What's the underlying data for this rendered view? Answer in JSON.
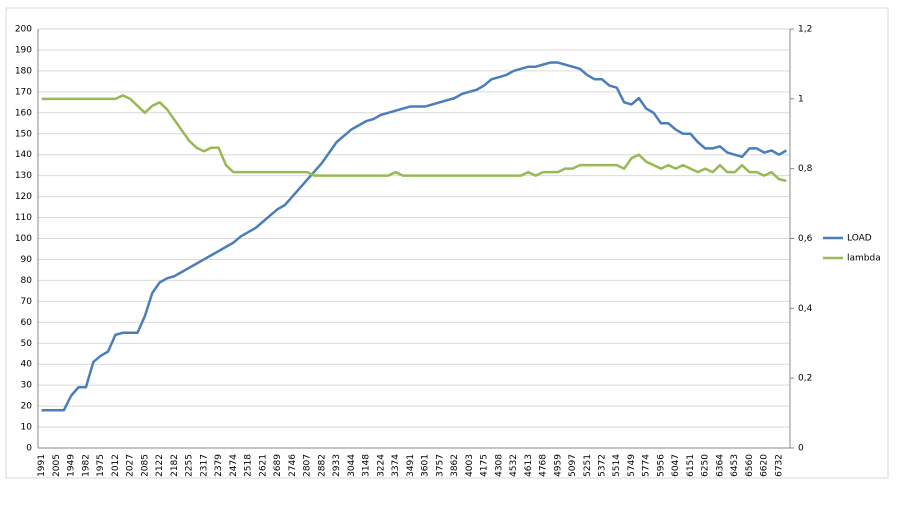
{
  "chart_data": {
    "type": "line",
    "categories": [
      "1991",
      null,
      "2005",
      null,
      "1949",
      null,
      "1982",
      null,
      "1975",
      null,
      "2012",
      null,
      "2027",
      null,
      "2085",
      null,
      "2122",
      null,
      "2182",
      null,
      "2255",
      null,
      "2317",
      null,
      "2379",
      null,
      "2474",
      null,
      "2518",
      null,
      "2621",
      null,
      "2689",
      null,
      "2746",
      null,
      "2807",
      null,
      "2882",
      null,
      "2933",
      null,
      "3044",
      null,
      "3148",
      null,
      "3224",
      null,
      "3374",
      null,
      "3491",
      null,
      "3601",
      null,
      "3757",
      null,
      "3862",
      null,
      "4003",
      null,
      "4175",
      null,
      "4308",
      null,
      "4532",
      null,
      "4613",
      null,
      "4768",
      null,
      "4959",
      null,
      "5097",
      null,
      "5251",
      null,
      "5372",
      null,
      "5514",
      null,
      "5749",
      null,
      "5774",
      null,
      "5956",
      null,
      "6047",
      null,
      "6151",
      null,
      "6250",
      null,
      "6364",
      null,
      "6453",
      null,
      "6560",
      null,
      "6620",
      null,
      "6732",
      null
    ],
    "series": [
      {
        "name": "LOAD",
        "color": "#4a7ebb",
        "values": [
          18,
          18,
          18,
          18,
          25,
          29,
          29,
          41,
          44,
          46,
          54,
          55,
          55,
          55,
          63,
          74,
          79,
          81,
          82,
          84,
          86,
          88,
          90,
          92,
          94,
          96,
          98,
          101,
          103,
          105,
          108,
          111,
          114,
          116,
          120,
          124,
          128,
          132,
          136,
          141,
          146,
          149,
          152,
          154,
          156,
          157,
          159,
          160,
          161,
          162,
          163,
          163,
          163,
          164,
          165,
          166,
          167,
          169,
          170,
          171,
          173,
          176,
          177,
          178,
          180,
          181,
          182,
          182,
          183,
          184,
          184,
          183,
          182,
          181,
          178,
          176,
          176,
          173,
          172,
          165,
          164,
          167,
          162,
          160,
          155,
          155,
          152,
          150,
          150,
          146,
          143,
          143,
          144,
          141,
          140,
          139,
          143,
          143,
          141,
          142,
          140,
          142
        ]
      },
      {
        "name": "lambda",
        "color": "#98b954",
        "axis": "y2",
        "values": [
          1,
          1,
          1,
          1,
          1,
          1,
          1,
          1,
          1,
          1,
          1,
          1.01,
          1,
          0.98,
          0.96,
          0.98,
          0.99,
          0.97,
          0.94,
          0.91,
          0.88,
          0.86,
          0.85,
          0.86,
          0.86,
          0.81,
          0.79,
          0.79,
          0.79,
          0.79,
          0.79,
          0.79,
          0.79,
          0.79,
          0.79,
          0.79,
          0.79,
          0.78,
          0.78,
          0.78,
          0.78,
          0.78,
          0.78,
          0.78,
          0.78,
          0.78,
          0.78,
          0.78,
          0.79,
          0.78,
          0.78,
          0.78,
          0.78,
          0.78,
          0.78,
          0.78,
          0.78,
          0.78,
          0.78,
          0.78,
          0.78,
          0.78,
          0.78,
          0.78,
          0.78,
          0.78,
          0.79,
          0.78,
          0.79,
          0.79,
          0.79,
          0.8,
          0.8,
          0.81,
          0.81,
          0.81,
          0.81,
          0.81,
          0.81,
          0.8,
          0.83,
          0.84,
          0.82,
          0.81,
          0.8,
          0.81,
          0.8,
          0.81,
          0.8,
          0.79,
          0.8,
          0.79,
          0.81,
          0.79,
          0.79,
          0.81,
          0.79,
          0.79,
          0.78,
          0.79,
          0.77,
          0.765
        ]
      }
    ],
    "ylim": [
      0,
      200
    ],
    "yticks": [
      0,
      10,
      20,
      30,
      40,
      50,
      60,
      70,
      80,
      90,
      100,
      110,
      120,
      130,
      140,
      150,
      160,
      170,
      180,
      190,
      200
    ],
    "y2lim": [
      0,
      1.2
    ],
    "y2ticks": [
      0,
      {
        "value": 0.2,
        "label": "0,2"
      },
      {
        "value": 0.4,
        "label": "0,4"
      },
      {
        "value": 0.6,
        "label": "0,6"
      },
      {
        "value": 0.8,
        "label": "0,8"
      },
      1,
      {
        "value": 1.2,
        "label": "1,2"
      }
    ],
    "grid": true,
    "legend": "right"
  }
}
